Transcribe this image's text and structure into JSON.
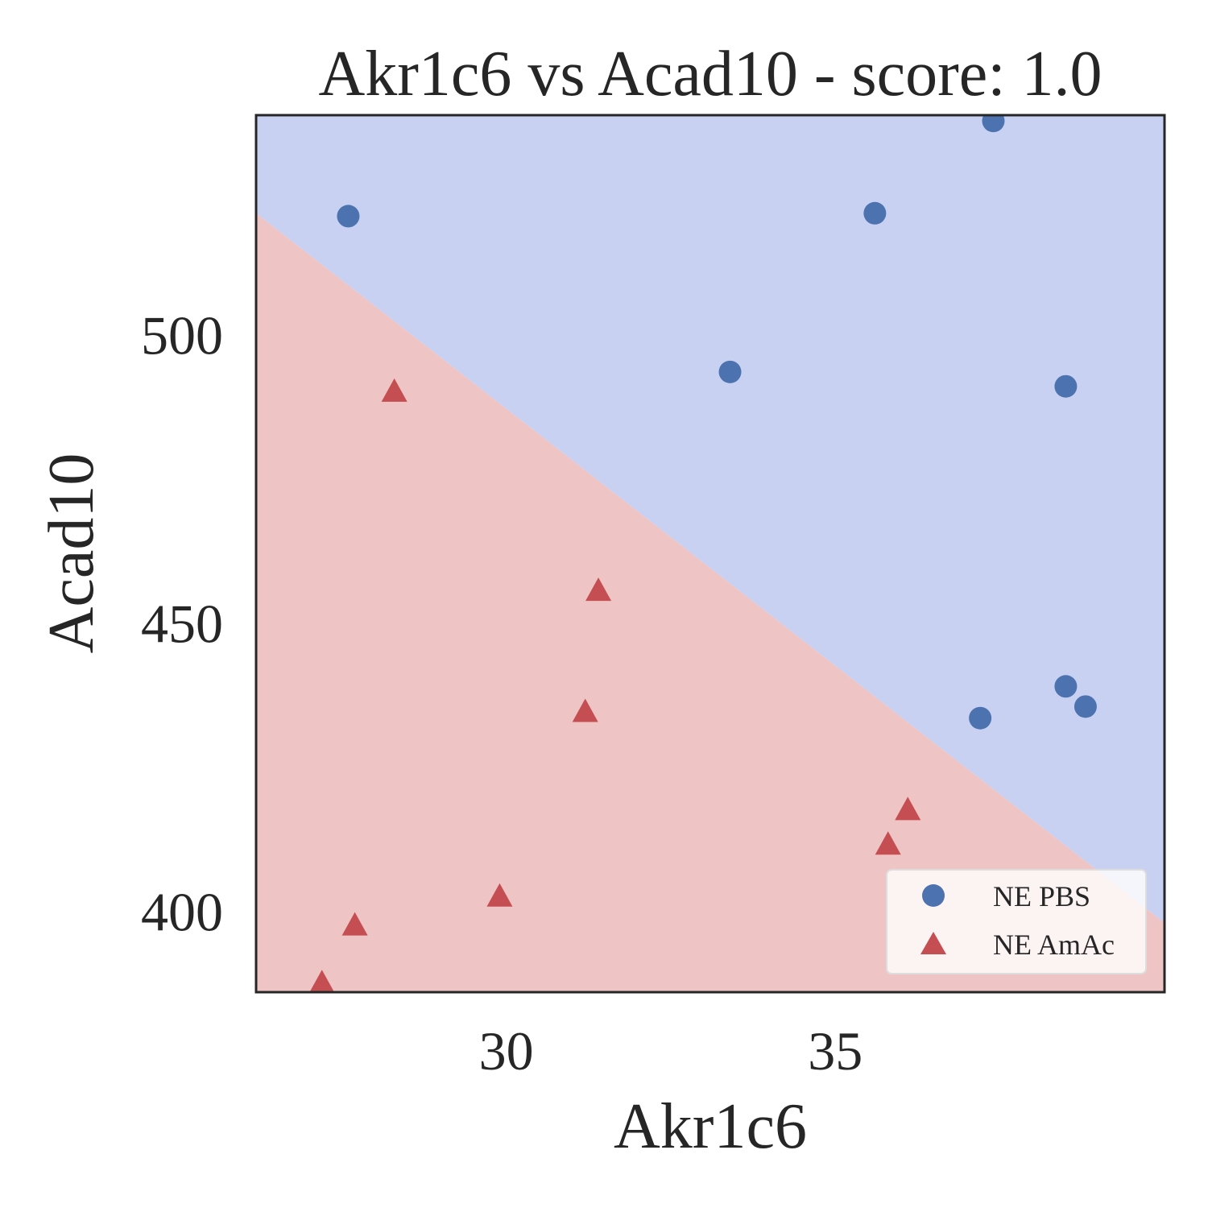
{
  "chart_data": {
    "type": "scatter",
    "title": "Akr1c6 vs Acad10 - score: 1.0",
    "xlabel": "Akr1c6",
    "ylabel": "Acad10",
    "xlim": [
      26.2,
      40.0
    ],
    "ylim": [
      386.0,
      538.0
    ],
    "xticks": [
      30,
      35
    ],
    "yticks": [
      400,
      450,
      500
    ],
    "grid": false,
    "legend_position": "bottom-right",
    "decision_boundary": {
      "points": [
        [
          26.2,
          521.0
        ],
        [
          40.0,
          398.0
        ]
      ],
      "above_color": "#c8d1f1",
      "below_color": "#eec4c4"
    },
    "series": [
      {
        "name": "NE PBS",
        "marker": "circle",
        "color": "#4c72b0",
        "points": [
          [
            27.6,
            520.5
          ],
          [
            35.6,
            521.0
          ],
          [
            37.4,
            537.0
          ],
          [
            33.4,
            493.5
          ],
          [
            38.5,
            491.0
          ],
          [
            37.2,
            433.5
          ],
          [
            38.5,
            439.0
          ],
          [
            38.8,
            435.5
          ]
        ]
      },
      {
        "name": "NE AmAc",
        "marker": "triangle",
        "color": "#c44e52",
        "points": [
          [
            28.3,
            490.0
          ],
          [
            31.4,
            455.5
          ],
          [
            31.2,
            434.5
          ],
          [
            36.1,
            417.5
          ],
          [
            35.8,
            411.5
          ],
          [
            29.9,
            402.5
          ],
          [
            27.7,
            397.5
          ],
          [
            27.2,
            387.5
          ]
        ]
      }
    ]
  }
}
